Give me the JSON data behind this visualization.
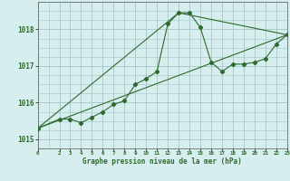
{
  "background_color": "#d6eeee",
  "grid_color": "#aacccc",
  "line_color": "#2d6a2d",
  "xlabel": "Graphe pression niveau de la mer (hPa)",
  "ylim": [
    1014.75,
    1018.75
  ],
  "xlim": [
    0,
    23
  ],
  "yticks": [
    1015,
    1016,
    1017,
    1018
  ],
  "xtick_positions": [
    0,
    2,
    3,
    4,
    5,
    6,
    7,
    8,
    9,
    10,
    11,
    12,
    13,
    14,
    15,
    16,
    17,
    18,
    19,
    20,
    21,
    22,
    23
  ],
  "xtick_labels": [
    "0",
    "2",
    "3",
    "4",
    "5",
    "6",
    "7",
    "8",
    "9",
    "10",
    "11",
    "12",
    "13",
    "14",
    "15",
    "16",
    "17",
    "18",
    "19",
    "20",
    "21",
    "22",
    "23"
  ],
  "series1_x": [
    0,
    2,
    3,
    4,
    5,
    6,
    7,
    8,
    9,
    10,
    11,
    12,
    13,
    14,
    15,
    16,
    17,
    18,
    19,
    20,
    21,
    22,
    23
  ],
  "series1_y": [
    1015.3,
    1015.55,
    1015.55,
    1015.45,
    1015.6,
    1015.75,
    1015.95,
    1016.05,
    1016.5,
    1016.65,
    1016.85,
    1018.15,
    1018.45,
    1018.45,
    1018.05,
    1017.1,
    1016.85,
    1017.05,
    1017.05,
    1017.1,
    1017.2,
    1017.6,
    1017.85
  ],
  "series2_x": [
    0,
    23
  ],
  "series2_y": [
    1015.3,
    1017.85
  ],
  "series3_x": [
    0,
    13,
    23
  ],
  "series3_y": [
    1015.3,
    1018.45,
    1017.85
  ]
}
